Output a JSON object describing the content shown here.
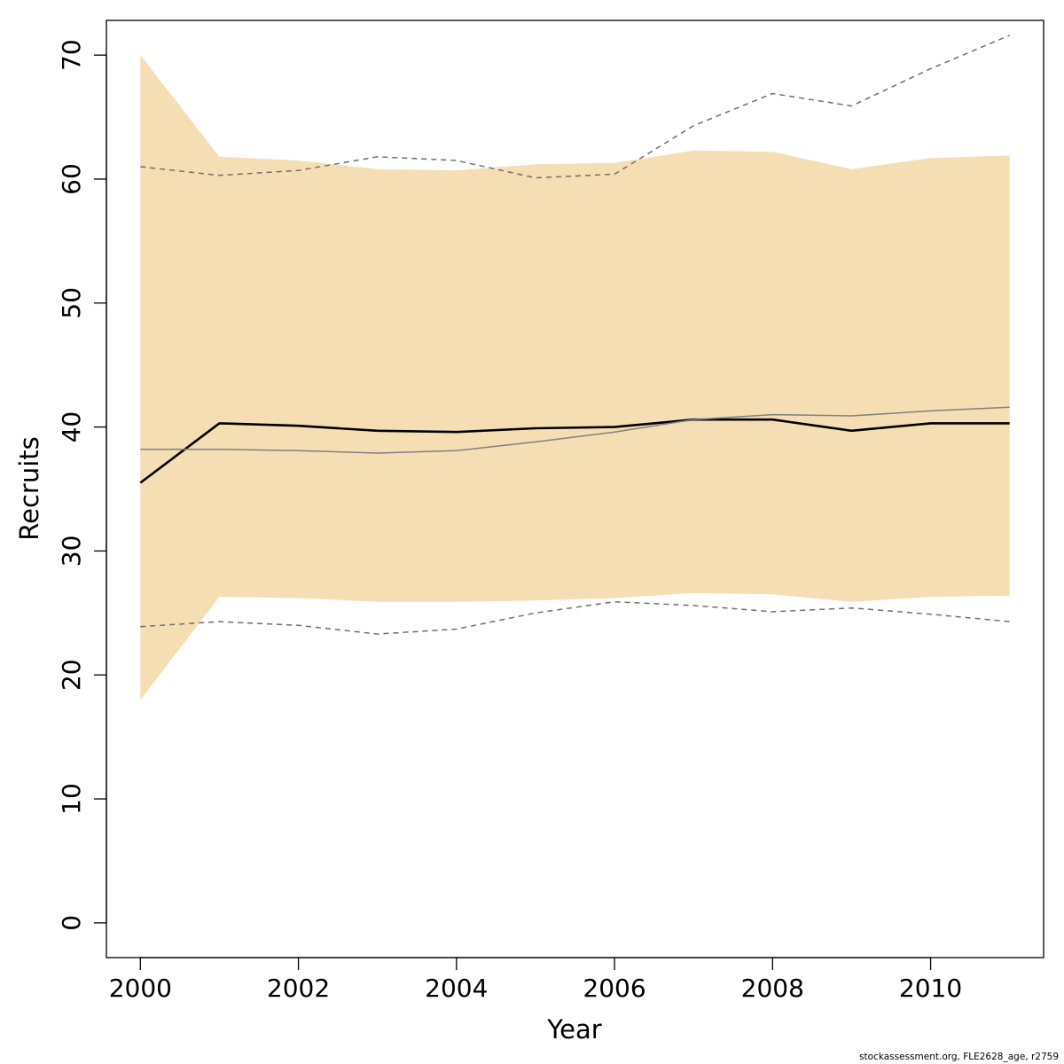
{
  "chart_data": {
    "type": "line",
    "xlabel": "Year",
    "ylabel": "Recruits",
    "xlim": [
      1999.57,
      2011.43
    ],
    "ylim": [
      -2.8,
      72.8
    ],
    "x_ticks": [
      2000,
      2002,
      2004,
      2006,
      2008,
      2010
    ],
    "y_ticks": [
      0,
      10,
      20,
      30,
      40,
      50,
      60,
      70
    ],
    "x": [
      2000,
      2001,
      2002,
      2003,
      2004,
      2005,
      2006,
      2007,
      2008,
      2009,
      2010,
      2011
    ],
    "band": {
      "lower": [
        18.0,
        26.3,
        26.2,
        25.9,
        25.9,
        26.0,
        26.2,
        26.6,
        26.5,
        25.9,
        26.3,
        26.4
      ],
      "upper": [
        70.0,
        61.8,
        61.5,
        60.8,
        60.7,
        61.2,
        61.3,
        62.3,
        62.2,
        60.8,
        61.7,
        61.9
      ],
      "color": "#f5deb3"
    },
    "series": [
      {
        "values": [
          35.5,
          40.3,
          40.1,
          39.7,
          39.6,
          39.9,
          40.0,
          40.6,
          40.6,
          39.7,
          40.3,
          40.3
        ],
        "color": "#000000",
        "style": "solid-thick"
      },
      {
        "values": [
          38.2,
          38.2,
          38.1,
          37.9,
          38.1,
          38.8,
          39.6,
          40.6,
          41.0,
          40.9,
          41.3,
          41.6
        ],
        "color": "#808080",
        "style": "solid-thin"
      },
      {
        "values": [
          61.0,
          60.3,
          60.7,
          61.8,
          61.5,
          60.1,
          60.4,
          64.3,
          66.9,
          65.9,
          68.9,
          71.6
        ],
        "color": "#6e6e6e",
        "style": "dashed"
      },
      {
        "values": [
          23.9,
          24.3,
          24.0,
          23.3,
          23.7,
          25.0,
          25.9,
          25.6,
          25.1,
          25.4,
          24.9,
          24.3
        ],
        "color": "#6e6e6e",
        "style": "dashed"
      }
    ],
    "grid": false,
    "legend": "none"
  },
  "footer_note": "stockassessment.org, FLE2628_age, r2759"
}
